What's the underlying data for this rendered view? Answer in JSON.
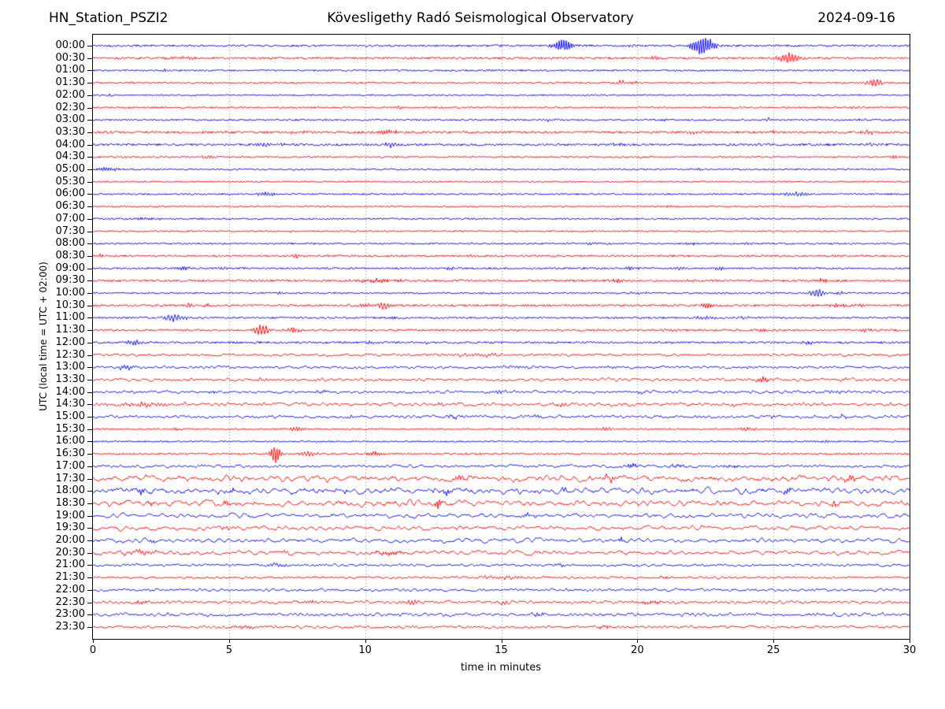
{
  "header": {
    "station": "HN_Station_PSZI2",
    "observatory": "Kövesligethy Radó Seismological Observatory",
    "date": "2024-09-16"
  },
  "chart_data": {
    "type": "line",
    "subtype": "helicorder-seismogram",
    "title": "Kövesligethy Radó Seismological Observatory",
    "xlabel": "time in minutes",
    "ylabel": "UTC (local time = UTC + 02:00)",
    "xlim": [
      0,
      30
    ],
    "x_ticks": [
      0,
      5,
      10,
      15,
      20,
      25,
      30
    ],
    "grid_minutes": [
      5,
      10,
      15,
      20,
      25
    ],
    "grid_style": "dotted-vertical",
    "row_spacing_minutes": 30,
    "palette": {
      "blue": "#0000ff",
      "red": "#ff0000",
      "axis": "#000000",
      "grid": "#888888"
    },
    "events_format": "[start_minute, amplitude_px, width_minutes]",
    "rows": [
      {
        "time": "00:00",
        "color": "blue",
        "noise": 1.1,
        "smooth": 0,
        "events": [
          [
            17.3,
            8,
            0.5
          ],
          [
            19.7,
            1.8,
            0.3
          ],
          [
            22.4,
            13,
            0.55
          ]
        ]
      },
      {
        "time": "00:30",
        "color": "red",
        "noise": 1.1,
        "smooth": 0,
        "events": [
          [
            3.2,
            1.6,
            0.8
          ],
          [
            20.7,
            2.2,
            0.4
          ],
          [
            25.6,
            7,
            0.6
          ]
        ]
      },
      {
        "time": "01:00",
        "color": "blue",
        "noise": 0.9,
        "smooth": 0,
        "events": [
          [
            2.6,
            1.6,
            0.4
          ],
          [
            14.5,
            1.4,
            0.3
          ]
        ]
      },
      {
        "time": "01:30",
        "color": "red",
        "noise": 0.9,
        "smooth": 0,
        "events": [
          [
            19.4,
            2.8,
            0.25
          ],
          [
            19.9,
            2.2,
            0.15
          ],
          [
            28.7,
            4.5,
            0.5
          ]
        ]
      },
      {
        "time": "02:00",
        "color": "blue",
        "noise": 0.8,
        "smooth": 0,
        "events": [
          [
            0.6,
            1.8,
            0.1
          ],
          [
            18.6,
            1.4,
            0.2
          ]
        ]
      },
      {
        "time": "02:30",
        "color": "red",
        "noise": 0.9,
        "smooth": 0,
        "events": [
          [
            11.3,
            1.5,
            0.4
          ],
          [
            28,
            1.4,
            0.3
          ]
        ]
      },
      {
        "time": "03:00",
        "color": "blue",
        "noise": 0.9,
        "smooth": 0,
        "events": [
          [
            16.8,
            1.8,
            0.5
          ],
          [
            21,
            1.4,
            0.3
          ],
          [
            24.8,
            2.8,
            0.15
          ],
          [
            28.3,
            1.5,
            0.3
          ]
        ]
      },
      {
        "time": "03:30",
        "color": "red",
        "noise": 1.2,
        "smooth": 0,
        "events": [
          [
            7.5,
            1.8,
            0.5
          ],
          [
            10.8,
            3,
            0.7
          ],
          [
            22,
            1.8,
            0.4
          ],
          [
            25,
            1.5,
            0.3
          ],
          [
            28.5,
            2.2,
            0.4
          ]
        ]
      },
      {
        "time": "04:00",
        "color": "blue",
        "noise": 1.2,
        "smooth": 0,
        "events": [
          [
            6.5,
            2.2,
            0.8
          ],
          [
            10.9,
            3.5,
            0.4
          ],
          [
            19.3,
            1.8,
            0.5
          ],
          [
            28.5,
            1.8,
            0.3
          ]
        ]
      },
      {
        "time": "04:30",
        "color": "red",
        "noise": 0.9,
        "smooth": 0,
        "events": [
          [
            4.3,
            1.8,
            0.5
          ],
          [
            29.5,
            1.8,
            0.3
          ]
        ]
      },
      {
        "time": "05:00",
        "color": "blue",
        "noise": 0.9,
        "smooth": 0,
        "events": [
          [
            0.5,
            3,
            0.5
          ],
          [
            22.3,
            1.8,
            0.15
          ],
          [
            23.3,
            1.4,
            0.15
          ]
        ]
      },
      {
        "time": "05:30",
        "color": "red",
        "noise": 0.8,
        "smooth": 0,
        "events": [
          [
            12.2,
            1.3,
            0.2
          ]
        ]
      },
      {
        "time": "06:00",
        "color": "blue",
        "noise": 0.9,
        "smooth": 0,
        "events": [
          [
            6.3,
            3,
            0.5
          ],
          [
            25.8,
            2.6,
            0.8
          ]
        ]
      },
      {
        "time": "06:30",
        "color": "red",
        "noise": 0.8,
        "smooth": 0,
        "events": [
          [
            21.2,
            1.6,
            0.3
          ]
        ]
      },
      {
        "time": "07:00",
        "color": "blue",
        "noise": 0.9,
        "smooth": 0,
        "events": [
          [
            2,
            1.4,
            1
          ]
        ]
      },
      {
        "time": "07:30",
        "color": "red",
        "noise": 0.8,
        "smooth": 0,
        "events": [
          [
            7.3,
            1.4,
            0.2
          ],
          [
            20.6,
            1.4,
            0.2
          ]
        ]
      },
      {
        "time": "08:00",
        "color": "blue",
        "noise": 0.9,
        "smooth": 0,
        "events": [
          [
            18.3,
            1.8,
            0.3
          ],
          [
            22,
            1.8,
            0.3
          ],
          [
            24,
            1.4,
            0.3
          ]
        ]
      },
      {
        "time": "08:30",
        "color": "red",
        "noise": 1.0,
        "smooth": 0,
        "events": [
          [
            0.3,
            2.2,
            0.15
          ],
          [
            7.5,
            2.6,
            0.3
          ],
          [
            13.9,
            1.8,
            0.3
          ],
          [
            17,
            1.4,
            0.3
          ]
        ]
      },
      {
        "time": "09:00",
        "color": "blue",
        "noise": 1.0,
        "smooth": 0,
        "events": [
          [
            3.3,
            2.8,
            0.4
          ],
          [
            4.7,
            1.8,
            0.3
          ],
          [
            5.5,
            1.6,
            0.2
          ],
          [
            13.1,
            2.2,
            0.3
          ],
          [
            19.8,
            2.2,
            0.4
          ],
          [
            21.5,
            2.6,
            0.3
          ],
          [
            23,
            2.2,
            0.3
          ]
        ]
      },
      {
        "time": "09:30",
        "color": "red",
        "noise": 1.1,
        "smooth": 0,
        "events": [
          [
            10.5,
            2.2,
            1.5
          ],
          [
            19.3,
            2.2,
            0.4
          ],
          [
            21.9,
            1.8,
            0.3
          ],
          [
            26.8,
            3.2,
            0.4
          ]
        ]
      },
      {
        "time": "10:00",
        "color": "blue",
        "noise": 0.9,
        "smooth": 0,
        "events": [
          [
            6.9,
            1.4,
            0.3
          ],
          [
            20,
            1.5,
            0.6
          ],
          [
            26.6,
            5.5,
            0.4
          ],
          [
            27.5,
            2,
            0.3
          ]
        ]
      },
      {
        "time": "10:30",
        "color": "red",
        "noise": 1.1,
        "smooth": 0,
        "events": [
          [
            3.5,
            2.8,
            0.2
          ],
          [
            4.2,
            1.8,
            0.15
          ],
          [
            10,
            2.2,
            0.5
          ],
          [
            10.7,
            4.5,
            0.3
          ],
          [
            22.6,
            4.5,
            0.4
          ],
          [
            27.4,
            2.8,
            0.5
          ],
          [
            28.2,
            1.8,
            0.3
          ]
        ]
      },
      {
        "time": "11:00",
        "color": "blue",
        "noise": 1.0,
        "smooth": 0,
        "events": [
          [
            3,
            4.5,
            0.6
          ],
          [
            11.2,
            1.4,
            0.3
          ],
          [
            22.5,
            1.8,
            0.8
          ],
          [
            24,
            1.8,
            0.4
          ]
        ]
      },
      {
        "time": "11:30",
        "color": "red",
        "noise": 1.1,
        "smooth": 0,
        "events": [
          [
            6.2,
            6.5,
            0.4
          ],
          [
            7.4,
            3,
            0.4
          ],
          [
            21.2,
            1.8,
            0.4
          ],
          [
            24.6,
            2.2,
            0.2
          ],
          [
            28.4,
            2.2,
            0.3
          ]
        ]
      },
      {
        "time": "12:00",
        "color": "blue",
        "noise": 1.1,
        "smooth": 0,
        "events": [
          [
            1.5,
            3,
            0.5
          ],
          [
            10.2,
            1.8,
            0.4
          ],
          [
            12.3,
            1.4,
            0.3
          ],
          [
            26.3,
            1.8,
            0.3
          ]
        ]
      },
      {
        "time": "12:30",
        "color": "red",
        "noise": 1.1,
        "smooth": 1,
        "events": [
          [
            14,
            1.5,
            3
          ]
        ]
      },
      {
        "time": "13:00",
        "color": "blue",
        "noise": 1.2,
        "smooth": 1,
        "events": [
          [
            1.2,
            3,
            0.5
          ],
          [
            15.5,
            1.6,
            1
          ],
          [
            19,
            1.6,
            0.5
          ],
          [
            24,
            1.8,
            0.3
          ]
        ]
      },
      {
        "time": "13:30",
        "color": "red",
        "noise": 1.3,
        "smooth": 1,
        "events": [
          [
            6.2,
            2.2,
            0.3
          ],
          [
            24.6,
            4,
            0.3
          ],
          [
            27.6,
            1.8,
            0.3
          ]
        ]
      },
      {
        "time": "14:00",
        "color": "blue",
        "noise": 1.3,
        "smooth": 1,
        "events": [
          [
            4.4,
            1.8,
            0.3
          ],
          [
            8.4,
            1.8,
            0.3
          ],
          [
            14.9,
            2,
            0.4
          ],
          [
            20.1,
            1.8,
            0.3
          ],
          [
            27.2,
            2,
            0.5
          ]
        ]
      },
      {
        "time": "14:30",
        "color": "red",
        "noise": 1.5,
        "smooth": 1,
        "events": [
          [
            2,
            2.2,
            1.5
          ],
          [
            12.8,
            2.2,
            0.3
          ],
          [
            17.2,
            2.5,
            0.3
          ],
          [
            23.6,
            1.8,
            0.3
          ]
        ]
      },
      {
        "time": "15:00",
        "color": "blue",
        "noise": 1.4,
        "smooth": 1,
        "events": [
          [
            9.4,
            1.8,
            0.3
          ],
          [
            13.2,
            1.8,
            0.3
          ],
          [
            16.3,
            1.8,
            0.3
          ],
          [
            25,
            1.8,
            0.3
          ],
          [
            27.5,
            1.8,
            0.3
          ]
        ]
      },
      {
        "time": "15:30",
        "color": "red",
        "noise": 0.8,
        "smooth": 0,
        "events": [
          [
            3.1,
            1.8,
            0.3
          ],
          [
            7.5,
            3,
            0.5
          ],
          [
            18.8,
            2.2,
            0.4
          ],
          [
            24,
            2.8,
            0.5
          ]
        ]
      },
      {
        "time": "16:00",
        "color": "blue",
        "noise": 0.8,
        "smooth": 0,
        "events": [
          [
            27,
            1.4,
            0.3
          ]
        ]
      },
      {
        "time": "16:30",
        "color": "red",
        "noise": 0.9,
        "smooth": 0,
        "events": [
          [
            6.7,
            12,
            0.25
          ],
          [
            7.9,
            3,
            0.5
          ],
          [
            10.3,
            3,
            0.4
          ],
          [
            14,
            1.4,
            0.5
          ]
        ]
      },
      {
        "time": "17:00",
        "color": "blue",
        "noise": 1.3,
        "smooth": 1,
        "events": [
          [
            19.8,
            3.5,
            0.3
          ],
          [
            21.5,
            1.8,
            0.5
          ],
          [
            23.5,
            1.8,
            0.4
          ]
        ]
      },
      {
        "time": "17:30",
        "color": "red",
        "noise": 2.6,
        "smooth": 2,
        "events": [
          [
            13.5,
            3,
            0.5
          ],
          [
            19,
            3,
            0.4
          ],
          [
            27.8,
            3.5,
            0.4
          ]
        ]
      },
      {
        "time": "18:00",
        "color": "blue",
        "noise": 2.8,
        "smooth": 2,
        "events": [
          [
            1.8,
            4.5,
            0.15
          ],
          [
            5.1,
            3.5,
            0.15
          ],
          [
            13,
            3.5,
            0.3
          ],
          [
            17.3,
            3.5,
            0.2
          ],
          [
            25.5,
            3.5,
            0.2
          ]
        ]
      },
      {
        "time": "18:30",
        "color": "red",
        "noise": 2.6,
        "smooth": 2,
        "events": [
          [
            2.1,
            3.5,
            0.15
          ],
          [
            4.9,
            3.5,
            0.15
          ],
          [
            12.7,
            6.5,
            0.15
          ],
          [
            27.2,
            3.5,
            0.2
          ]
        ]
      },
      {
        "time": "19:00",
        "color": "blue",
        "noise": 2.0,
        "smooth": 2,
        "events": [
          [
            16,
            2.2,
            0.5
          ]
        ]
      },
      {
        "time": "19:30",
        "color": "red",
        "noise": 2.0,
        "smooth": 2,
        "events": [
          [
            5,
            2.2,
            0.4
          ]
        ]
      },
      {
        "time": "20:00",
        "color": "blue",
        "noise": 2.0,
        "smooth": 2,
        "events": [
          [
            2.2,
            2.8,
            0.2
          ],
          [
            19.4,
            4.5,
            0.12
          ]
        ]
      },
      {
        "time": "20:30",
        "color": "red",
        "noise": 1.9,
        "smooth": 2,
        "events": [
          [
            1.8,
            2.8,
            0.8
          ],
          [
            7.1,
            2.8,
            0.2
          ],
          [
            11,
            2.2,
            1
          ]
        ]
      },
      {
        "time": "21:00",
        "color": "blue",
        "noise": 1.2,
        "smooth": 1,
        "events": [
          [
            6.8,
            2,
            0.8
          ],
          [
            17.2,
            2,
            0.3
          ]
        ]
      },
      {
        "time": "21:30",
        "color": "red",
        "noise": 1.0,
        "smooth": 1,
        "events": [
          [
            15,
            1.8,
            1.5
          ],
          [
            21,
            1.6,
            0.4
          ]
        ]
      },
      {
        "time": "22:00",
        "color": "blue",
        "noise": 1.3,
        "smooth": 1,
        "events": []
      },
      {
        "time": "22:30",
        "color": "red",
        "noise": 1.4,
        "smooth": 1,
        "events": [
          [
            1.7,
            2.2,
            0.4
          ],
          [
            8,
            2.2,
            0.3
          ],
          [
            11.7,
            2.8,
            0.5
          ],
          [
            15.1,
            2,
            0.3
          ],
          [
            20.5,
            2,
            0.8
          ]
        ]
      },
      {
        "time": "23:00",
        "color": "blue",
        "noise": 1.5,
        "smooth": 1,
        "events": [
          [
            16.4,
            2.2,
            0.4
          ]
        ]
      },
      {
        "time": "23:30",
        "color": "red",
        "noise": 1.2,
        "smooth": 1,
        "events": [
          [
            5.5,
            1.8,
            0.8
          ],
          [
            18.8,
            2,
            0.3
          ]
        ]
      }
    ]
  }
}
